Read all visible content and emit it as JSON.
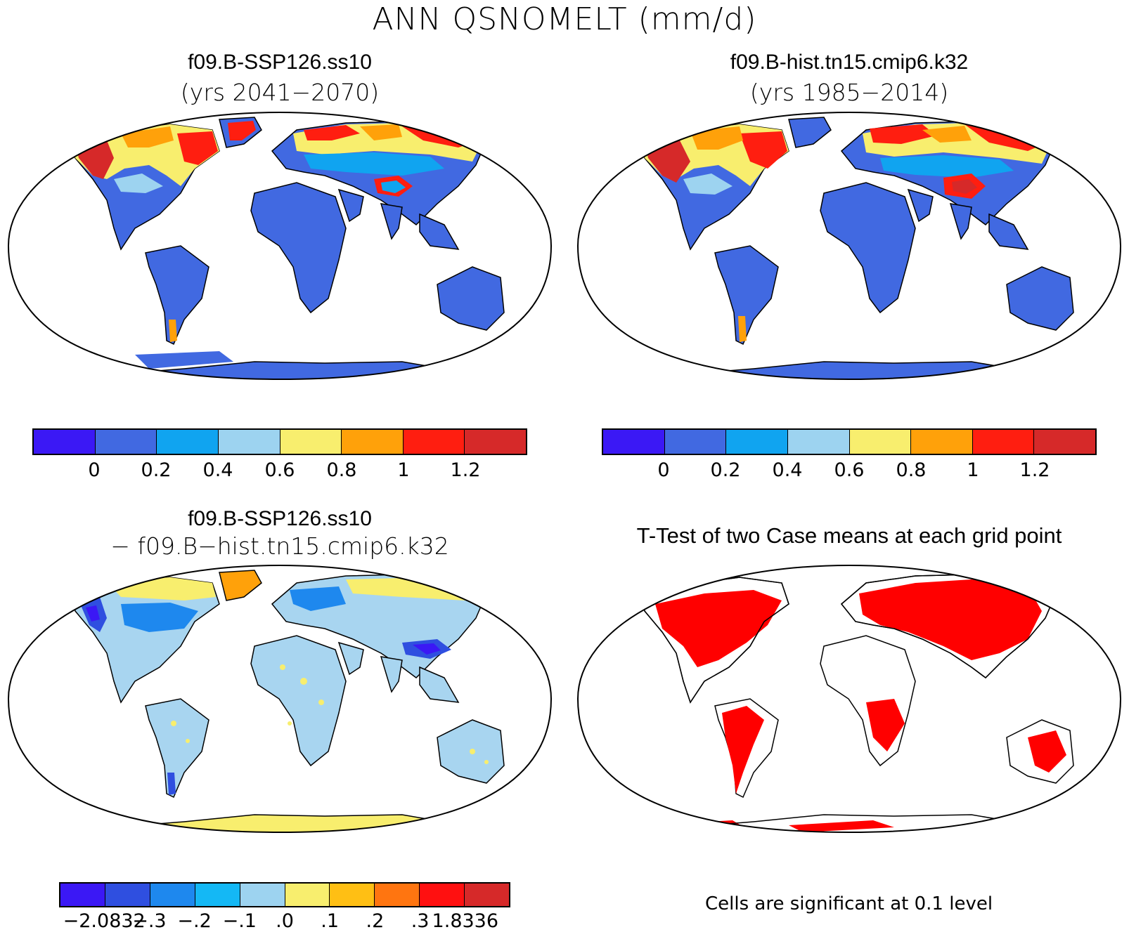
{
  "figure": {
    "main_title": "ANN QSNOMELT (mm/d)"
  },
  "panels": {
    "top_left": {
      "case": "f09.B-SSP126.ss10",
      "subtitle": "(yrs 2041−2070)",
      "ocean_color": "#ffffff",
      "land_color": "#4169e1"
    },
    "top_right": {
      "case": "f09.B-hist.tn15.cmip6.k32",
      "subtitle": "(yrs 1985−2014)",
      "ocean_color": "#ffffff",
      "land_color": "#4169e1"
    },
    "bottom_left": {
      "case": "f09.B-SSP126.ss10",
      "subtitle": "− f09.B−hist.tn15.cmip6.k32",
      "ocean_color": "#ffffff",
      "land_color": "#a8d5f0"
    },
    "bottom_right": {
      "title": "T-Test of two Case means at each grid point",
      "note": "Cells are significant at 0.1 level",
      "significant_color": "#ff0000"
    }
  },
  "colorbars": {
    "case": {
      "colors": [
        "#3b18f5",
        "#4169e1",
        "#10a4f0",
        "#9dd3f0",
        "#f8ee6e",
        "#ffa10a",
        "#ff1e10",
        "#d62929"
      ],
      "labels": [
        "0",
        "0.2",
        "0.4",
        "0.6",
        "0.8",
        "1",
        "1.2"
      ]
    },
    "diff": {
      "colors": [
        "#3b18f5",
        "#2f4fe0",
        "#1e88ee",
        "#14b8f5",
        "#9dd3f0",
        "#f8ee6e",
        "#ffbf14",
        "#ff7510",
        "#ff1010",
        "#d62929"
      ],
      "labels": [
        "−2.0832",
        "−.3",
        "−.2",
        "−.1",
        ".0",
        ".1",
        ".2",
        ".3",
        "1.8336"
      ]
    }
  }
}
